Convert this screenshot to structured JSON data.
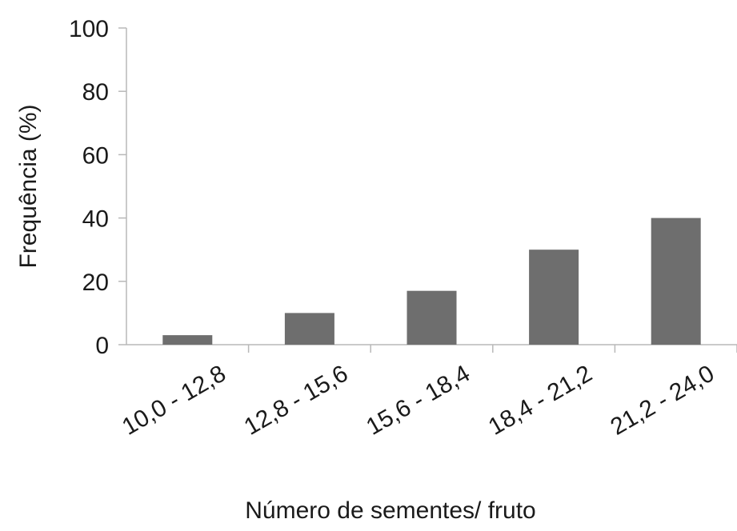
{
  "chart_data": {
    "type": "bar",
    "categories": [
      "10,0 - 12,8",
      "12,8 - 15,6",
      "15,6 - 18,4",
      "18,4 - 21,2",
      "21,2 - 24,0"
    ],
    "values": [
      3,
      10,
      17,
      30,
      40
    ],
    "xlabel": "Número de sementes/ fruto",
    "ylabel": "Frequência (%)",
    "ylim": [
      0,
      100
    ],
    "yticks": [
      0,
      20,
      40,
      60,
      80,
      100
    ],
    "bar_color": "#6e6e6e",
    "grid": false,
    "legend": "none"
  }
}
